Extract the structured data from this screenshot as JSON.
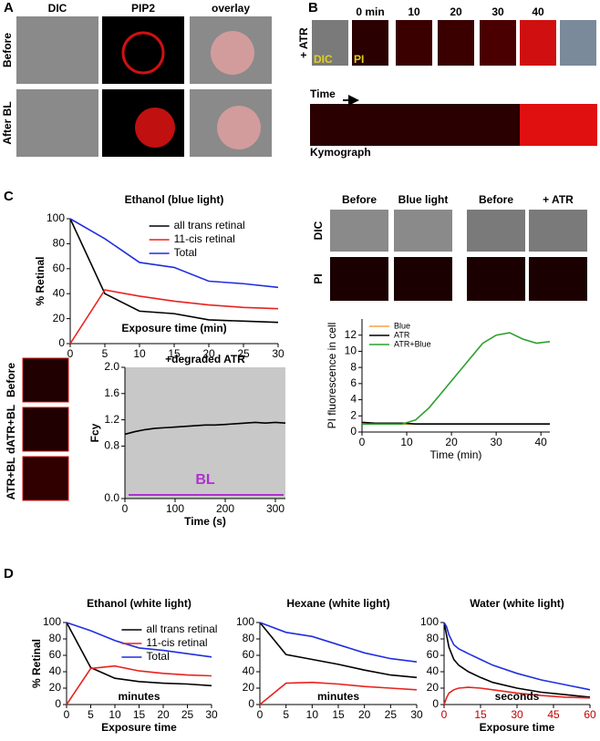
{
  "panels": {
    "A": {
      "label": "A",
      "columns": [
        "DIC",
        "PIP2",
        "overlay"
      ],
      "rows": [
        "Before",
        "After BL"
      ]
    },
    "B": {
      "label": "B",
      "times": [
        "0 min",
        "10",
        "20",
        "30",
        "40"
      ],
      "row": "+ ATR",
      "dic": "DIC",
      "pi": "PI",
      "time": "Time",
      "kymograph": "Kymograph"
    },
    "C": {
      "label": "C",
      "columns": [
        "Before",
        "Blue light",
        "Before",
        "+ ATR"
      ],
      "rows": [
        "DIC",
        "PI"
      ],
      "cells": [
        "Before",
        "dATR+BL",
        "ATR+BL"
      ]
    },
    "D": {
      "label": "D"
    }
  },
  "chart_data": [
    {
      "type": "line",
      "title": "Ethanol (blue light)",
      "ylabel": "% Retinal",
      "xlabel": "Exposure time (min)",
      "x": [
        0,
        5,
        10,
        15,
        20,
        25,
        30
      ],
      "xlim": [
        0,
        30
      ],
      "ylim": [
        0,
        100
      ],
      "xticks": [
        0,
        5,
        10,
        15,
        20,
        25,
        30
      ],
      "yticks": [
        0,
        20,
        40,
        60,
        80,
        100
      ],
      "legend": "upper right",
      "series": [
        {
          "name": "all trans retinal",
          "color": "#000000",
          "values": [
            100,
            40,
            26,
            24,
            19,
            18,
            17
          ]
        },
        {
          "name": "11-cis retinal",
          "color": "#e8231f",
          "values": [
            0,
            43,
            38,
            34,
            31,
            29,
            28
          ]
        },
        {
          "name": "Total",
          "color": "#1f2fe0",
          "values": [
            100,
            84,
            65,
            61,
            50,
            48,
            45
          ]
        }
      ]
    },
    {
      "type": "line",
      "title": "+degraded ATR",
      "ylabel": "Fcy",
      "xlabel": "Time (s)",
      "annotation": "BL",
      "shade": true,
      "x": [
        0,
        20,
        40,
        60,
        80,
        100,
        120,
        140,
        160,
        180,
        200,
        220,
        240,
        260,
        280,
        300,
        320
      ],
      "xlim": [
        0,
        320
      ],
      "ylim": [
        0,
        2
      ],
      "xticks": [
        0,
        100,
        200,
        300
      ],
      "yticks": [
        {
          "value": 0,
          "label": "0.0"
        },
        0.8,
        1.2,
        1.6,
        {
          "value": 2,
          "label": "2.0"
        }
      ],
      "series": [
        {
          "name": null,
          "color": "#000000",
          "values": [
            0.98,
            1.02,
            1.05,
            1.07,
            1.08,
            1.09,
            1.1,
            1.11,
            1.12,
            1.12,
            1.13,
            1.14,
            1.15,
            1.16,
            1.15,
            1.16,
            1.15
          ]
        }
      ]
    },
    {
      "type": "line",
      "ylabel": "PI fluorescence in cell",
      "xlabel": "Time (min)",
      "x": [
        0,
        3,
        6,
        9,
        12,
        15,
        18,
        21,
        24,
        27,
        30,
        33,
        36,
        39,
        42
      ],
      "xlim": [
        0,
        42
      ],
      "ylim": [
        0,
        14
      ],
      "xticks": [
        0,
        10,
        20,
        30,
        40
      ],
      "yticks": [
        0,
        2,
        4,
        6,
        8,
        10,
        12
      ],
      "legend": "upper left",
      "series": [
        {
          "name": "Blue",
          "color": "#f5a04a",
          "values": [
            1,
            1,
            1,
            1,
            1,
            1,
            1,
            1,
            1,
            1,
            1,
            1,
            1,
            1,
            1
          ]
        },
        {
          "name": "ATR",
          "color": "#000000",
          "values": [
            1.2,
            1.1,
            1.1,
            1.1,
            1,
            1,
            1,
            1,
            1,
            1,
            1,
            1,
            1,
            1,
            1
          ]
        },
        {
          "name": "ATR+Blue",
          "color": "#2ca02c",
          "values": [
            1,
            1,
            1,
            1,
            1.5,
            3,
            5,
            7,
            9,
            11,
            12,
            12.3,
            11.5,
            11,
            11.2
          ]
        }
      ]
    },
    {
      "type": "line",
      "title": "Ethanol (white light)",
      "ylabel": "% Retinal",
      "annotation": "minutes",
      "xlabel": "Exposure time",
      "x": [
        0,
        5,
        10,
        15,
        20,
        25,
        30
      ],
      "xlim": [
        0,
        30
      ],
      "ylim": [
        0,
        100
      ],
      "xticks": [
        0,
        5,
        10,
        15,
        20,
        25,
        30
      ],
      "yticks": [
        0,
        20,
        40,
        60,
        80,
        100
      ],
      "legend": "upper right",
      "series": [
        {
          "name": "all trans retinal",
          "color": "#000000",
          "values": [
            100,
            45,
            32,
            28,
            26,
            25,
            23
          ]
        },
        {
          "name": "11-cis retinal",
          "color": "#e8231f",
          "values": [
            0,
            44,
            47,
            41,
            38,
            36,
            35
          ]
        },
        {
          "name": "Total",
          "color": "#1f2fe0",
          "values": [
            100,
            90,
            78,
            69,
            66,
            62,
            58
          ]
        }
      ]
    },
    {
      "type": "line",
      "title": "Hexane (white light)",
      "annotation": "minutes",
      "x": [
        0,
        5,
        10,
        15,
        20,
        25,
        30
      ],
      "xlim": [
        0,
        30
      ],
      "ylim": [
        0,
        100
      ],
      "xticks": [
        0,
        5,
        10,
        15,
        20,
        25,
        30
      ],
      "yticks": [
        0,
        20,
        40,
        60,
        80,
        100
      ],
      "series": [
        {
          "name": null,
          "color": "#000000",
          "values": [
            100,
            61,
            55,
            49,
            42,
            36,
            33
          ]
        },
        {
          "name": null,
          "color": "#e8231f",
          "values": [
            0,
            26,
            27,
            25,
            22,
            20,
            18
          ]
        },
        {
          "name": null,
          "color": "#1f2fe0",
          "values": [
            100,
            88,
            83,
            73,
            63,
            56,
            52
          ]
        }
      ]
    },
    {
      "type": "line",
      "title": "Water (white light)",
      "annotation": "seconds",
      "xlabel": "Exposure time",
      "xtick_color": "#c00000",
      "x": [
        0,
        1,
        2,
        4,
        6,
        10,
        15,
        20,
        30,
        40,
        50,
        60
      ],
      "xlim": [
        0,
        60
      ],
      "ylim": [
        0,
        100
      ],
      "xticks": [
        0,
        15,
        30,
        45,
        60
      ],
      "yticks": [
        0,
        20,
        40,
        60,
        80,
        100
      ],
      "series": [
        {
          "name": null,
          "color": "#000000",
          "values": [
            100,
            85,
            70,
            55,
            48,
            40,
            33,
            27,
            20,
            15,
            12,
            9
          ]
        },
        {
          "name": null,
          "color": "#e8231f",
          "values": [
            0,
            8,
            14,
            18,
            20,
            21,
            20,
            18,
            14,
            11,
            9,
            8
          ]
        },
        {
          "name": null,
          "color": "#1f2fe0",
          "values": [
            100,
            95,
            85,
            73,
            68,
            62,
            55,
            48,
            38,
            30,
            24,
            18
          ]
        }
      ]
    }
  ]
}
